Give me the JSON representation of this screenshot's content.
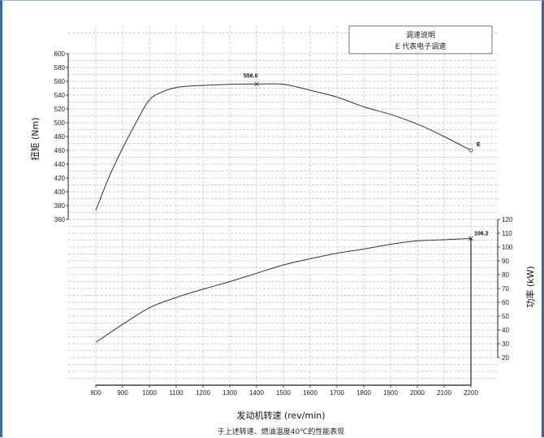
{
  "chart_data": {
    "type": "line",
    "x_label": "发动机转速 (rev/min)",
    "caption": "于上述转速、燃油温度40℃的性能表现",
    "x_ticks": [
      800,
      900,
      1000,
      1100,
      1200,
      1300,
      1400,
      1500,
      1600,
      1700,
      1800,
      1900,
      2000,
      2100,
      2200
    ],
    "x_range": [
      800,
      2200
    ],
    "legend_box": [
      "调速说明",
      "E 代表电子调速"
    ],
    "grid": true,
    "torque": {
      "axis_label": "扭矩 (Nm)",
      "range": [
        360,
        600
      ],
      "ticks": [
        360,
        380,
        400,
        420,
        440,
        460,
        480,
        500,
        520,
        540,
        560,
        580,
        600
      ],
      "x": [
        800,
        850,
        900,
        950,
        1000,
        1050,
        1100,
        1150,
        1200,
        1300,
        1400,
        1500,
        1600,
        1700,
        1800,
        1900,
        2000,
        2100,
        2200
      ],
      "y": [
        373,
        422,
        463,
        500,
        533,
        545,
        551,
        553,
        554,
        555.5,
        556,
        555.5,
        547,
        537,
        523,
        512,
        498,
        480,
        460
      ],
      "peak_label": "556.0",
      "peak_x": 1400,
      "end_label": "E"
    },
    "power": {
      "axis_label": "功率 (kW)",
      "range": [
        20,
        120
      ],
      "ticks": [
        20,
        30,
        40,
        50,
        60,
        70,
        80,
        90,
        100,
        110,
        120
      ],
      "x": [
        800,
        900,
        1000,
        1100,
        1200,
        1300,
        1400,
        1500,
        1600,
        1700,
        1800,
        1900,
        2000,
        2100,
        2200
      ],
      "y": [
        31,
        44,
        56,
        63.5,
        69.5,
        75,
        81,
        87,
        91.5,
        95.5,
        98.5,
        102,
        104.5,
        105.3,
        106.2
      ],
      "end_value_label": "106.2"
    }
  }
}
